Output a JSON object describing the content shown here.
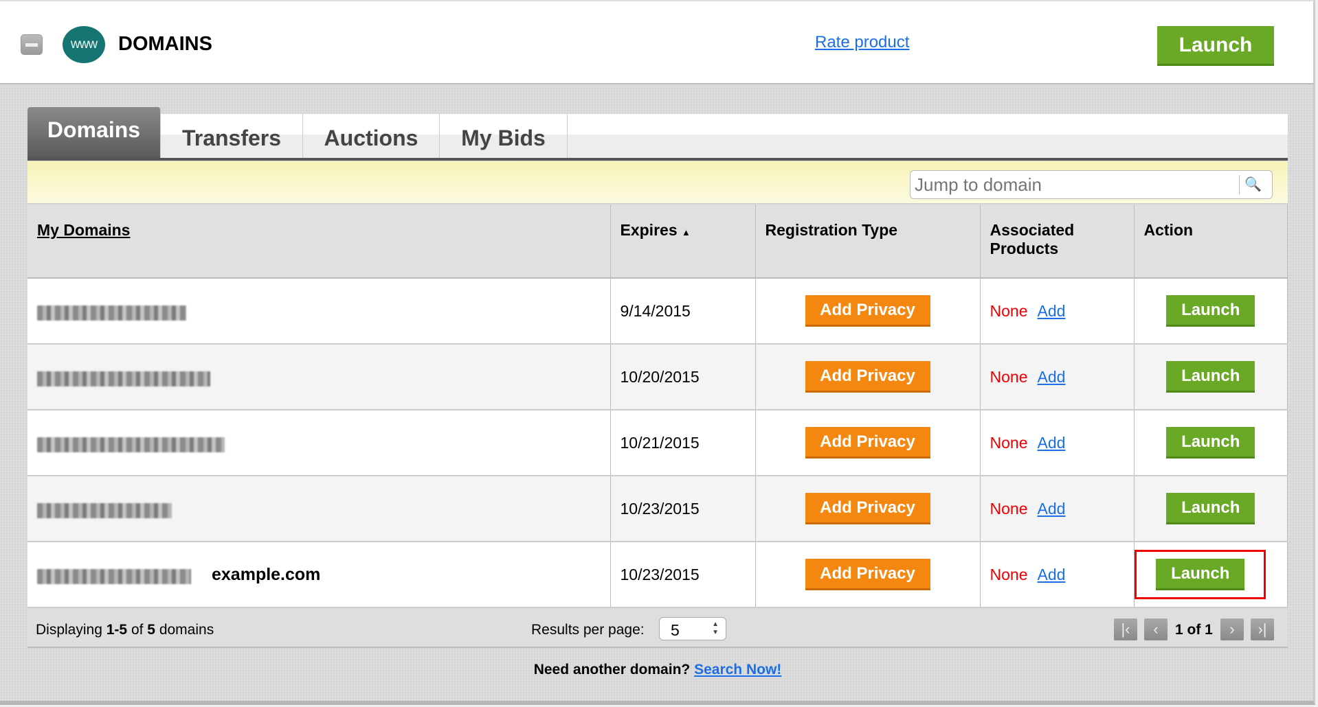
{
  "header": {
    "title": "DOMAINS",
    "logo_text": "www",
    "rate_link": "Rate product",
    "launch": "Launch",
    "collapse_icon": "minus-icon"
  },
  "tabs": [
    {
      "label": "Domains",
      "active": true
    },
    {
      "label": "Transfers"
    },
    {
      "label": "Auctions"
    },
    {
      "label": "My Bids"
    }
  ],
  "search": {
    "placeholder": "Jump to domain",
    "icon": "search-icon"
  },
  "table": {
    "headers": {
      "domain": "My Domains",
      "expires": "Expires",
      "sort_indicator": "▲",
      "reg": "Registration Type",
      "assoc": "Associated Products",
      "action": "Action"
    },
    "rows": [
      {
        "expires": "9/14/2015",
        "privacy": "Add Privacy",
        "assoc": "None",
        "add": "Add",
        "action": "Launch"
      },
      {
        "expires": "10/20/2015",
        "privacy": "Add Privacy",
        "assoc": "None",
        "add": "Add",
        "action": "Launch"
      },
      {
        "expires": "10/21/2015",
        "privacy": "Add Privacy",
        "assoc": "None",
        "add": "Add",
        "action": "Launch"
      },
      {
        "expires": "10/23/2015",
        "privacy": "Add Privacy",
        "assoc": "None",
        "add": "Add",
        "action": "Launch"
      },
      {
        "expires": "10/23/2015",
        "privacy": "Add Privacy",
        "assoc": "None",
        "add": "Add",
        "action": "Launch",
        "annotation": "example.com",
        "highlighted": true
      }
    ]
  },
  "footer": {
    "displaying_prefix": "Displaying",
    "range": "1-5",
    "of": "of",
    "total": "5",
    "suffix": "domains",
    "rpp_label": "Results per page:",
    "rpp_value": "5",
    "page_text": "1 of 1"
  },
  "bottom": {
    "text": "Need another domain?",
    "link": "Search Now!"
  },
  "colors": {
    "green": "#6aa926",
    "orange": "#f3870f",
    "link": "#1a6fe8",
    "none": "#e00000",
    "highlight": "#e00000"
  }
}
